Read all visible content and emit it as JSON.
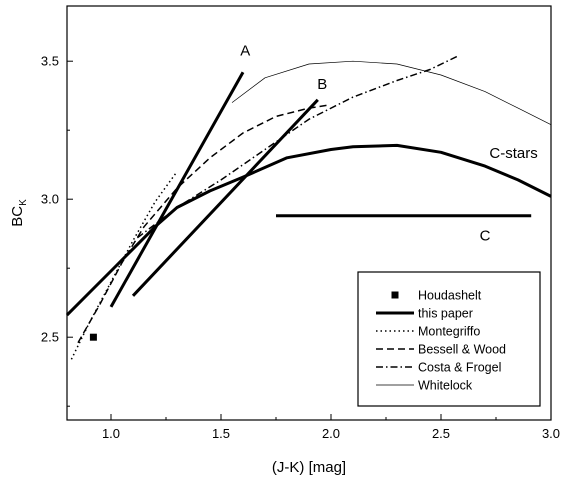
{
  "chart_data": {
    "type": "line",
    "xlabel": "(J-K) [mag]",
    "ylabel_main": "BC",
    "ylabel_sub": "K",
    "xlim": [
      0.8,
      3.0
    ],
    "ylim": [
      2.2,
      3.7
    ],
    "xticks": [
      1.0,
      1.5,
      2.0,
      2.5,
      3.0
    ],
    "xtick_labels": [
      "1.0",
      "1.5",
      "2.0",
      "2.5",
      "3.0"
    ],
    "yticks": [
      2.5,
      3.0,
      3.5
    ],
    "ytick_labels": [
      "2.5",
      "3.0",
      "3.5"
    ],
    "grid": false,
    "legend_position": "bottom-right",
    "series": [
      {
        "name": "Houdashelt",
        "style": "marker",
        "points": [
          [
            0.92,
            2.5
          ]
        ]
      },
      {
        "name": "this paper",
        "style": "thick",
        "points": [
          [
            0.8,
            2.58
          ],
          [
            0.9,
            2.66
          ],
          [
            1.0,
            2.74
          ],
          [
            1.1,
            2.82
          ],
          [
            1.2,
            2.9
          ],
          [
            1.3,
            2.97
          ],
          [
            1.45,
            3.03
          ],
          [
            1.6,
            3.08
          ],
          [
            1.8,
            3.15
          ],
          [
            2.0,
            3.18
          ],
          [
            2.1,
            3.19
          ],
          [
            2.3,
            3.195
          ],
          [
            2.5,
            3.17
          ],
          [
            2.7,
            3.12
          ],
          [
            2.85,
            3.07
          ],
          [
            3.0,
            3.01
          ]
        ]
      },
      {
        "name": "Montegriffo",
        "style": "dotted",
        "points": [
          [
            0.82,
            2.42
          ],
          [
            0.9,
            2.55
          ],
          [
            1.0,
            2.7
          ],
          [
            1.1,
            2.85
          ],
          [
            1.2,
            2.99
          ],
          [
            1.3,
            3.1
          ]
        ]
      },
      {
        "name": "Bessell & Wood",
        "style": "dashed",
        "points": [
          [
            0.85,
            2.48
          ],
          [
            0.95,
            2.62
          ],
          [
            1.05,
            2.77
          ],
          [
            1.15,
            2.9
          ],
          [
            1.3,
            3.04
          ],
          [
            1.45,
            3.15
          ],
          [
            1.6,
            3.24
          ],
          [
            1.75,
            3.3
          ],
          [
            1.9,
            3.33
          ],
          [
            1.98,
            3.34
          ]
        ]
      },
      {
        "name": "Costa & Frogel",
        "style": "dashdot",
        "points": [
          [
            1.12,
            2.86
          ],
          [
            1.3,
            2.97
          ],
          [
            1.5,
            3.07
          ],
          [
            1.7,
            3.18
          ],
          [
            1.9,
            3.29
          ],
          [
            2.1,
            3.37
          ],
          [
            2.3,
            3.43
          ],
          [
            2.45,
            3.47
          ],
          [
            2.58,
            3.52
          ]
        ]
      },
      {
        "name": "Whitelock",
        "style": "thin",
        "points": [
          [
            1.55,
            3.35
          ],
          [
            1.7,
            3.44
          ],
          [
            1.9,
            3.49
          ],
          [
            2.1,
            3.5
          ],
          [
            2.3,
            3.49
          ],
          [
            2.5,
            3.45
          ],
          [
            2.7,
            3.39
          ],
          [
            2.85,
            3.33
          ],
          [
            3.0,
            3.27
          ]
        ]
      }
    ],
    "lines": [
      {
        "label": "A",
        "from": [
          1.0,
          2.61
        ],
        "to": [
          1.6,
          3.46
        ],
        "label_at": [
          1.61,
          3.52
        ]
      },
      {
        "label": "B",
        "from": [
          1.1,
          2.65
        ],
        "to": [
          1.94,
          3.36
        ],
        "label_at": [
          1.96,
          3.4
        ]
      },
      {
        "label": "C",
        "from": [
          1.75,
          2.94
        ],
        "to": [
          2.91,
          2.94
        ],
        "label_at": [
          2.7,
          2.85
        ]
      }
    ],
    "annotations": [
      {
        "text": "C-stars",
        "at": [
          2.72,
          3.15
        ]
      }
    ]
  }
}
